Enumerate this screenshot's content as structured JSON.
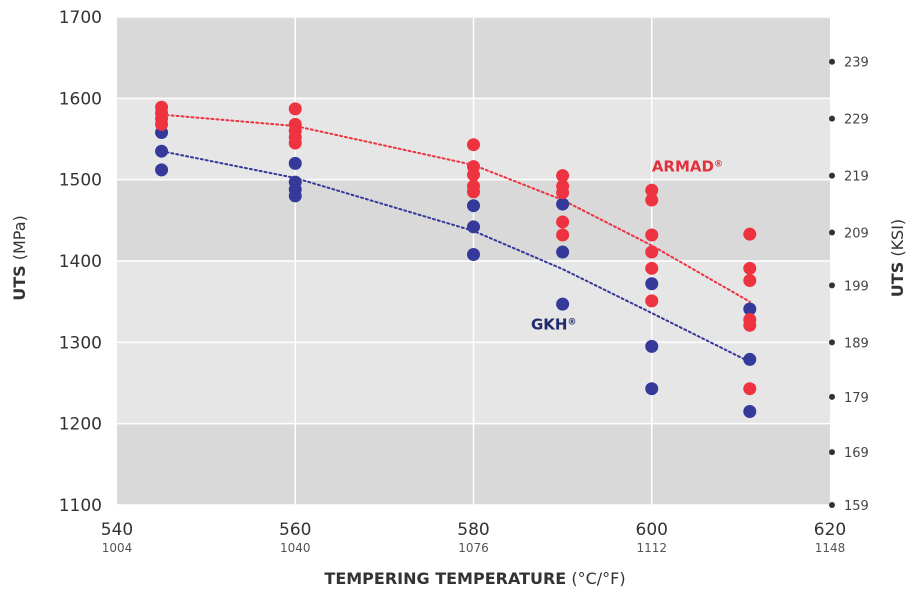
{
  "chart_data": {
    "type": "scatter",
    "xlim": [
      540,
      620
    ],
    "ylim": [
      1100,
      1700
    ],
    "x_ticks": [
      540,
      560,
      580,
      600,
      620
    ],
    "x_ticks_secondary": [
      "1004",
      "1040",
      "1076",
      "1112",
      "1148"
    ],
    "y_ticks": [
      1100,
      1200,
      1300,
      1400,
      1500,
      1600,
      1700
    ],
    "y_right_ticks": [
      {
        "label": "159",
        "value": 1100
      },
      {
        "label": "169",
        "value": 1165
      },
      {
        "label": "179",
        "value": 1233
      },
      {
        "label": "189",
        "value": 1300
      },
      {
        "label": "199",
        "value": 1370
      },
      {
        "label": "209",
        "value": 1435
      },
      {
        "label": "219",
        "value": 1505
      },
      {
        "label": "229",
        "value": 1575
      },
      {
        "label": "239",
        "value": 1645
      }
    ],
    "xlabel_bold": "TEMPERING TEMPERATURE",
    "xlabel_unit": "(°C/°F)",
    "ylabel_bold": "UTS",
    "ylabel_unit": "(MPa)",
    "y2label_bold": "UTS",
    "y2label_unit": "(KSI)",
    "bands": [
      {
        "from": 1100,
        "to": 1200,
        "color": "#d9d9d9"
      },
      {
        "from": 1200,
        "to": 1400,
        "color": "#e6e6e6"
      },
      {
        "from": 1400,
        "to": 1500,
        "color": "#d9d9d9"
      },
      {
        "from": 1500,
        "to": 1600,
        "color": "#e6e6e6"
      },
      {
        "from": 1600,
        "to": 1700,
        "color": "#d9d9d9"
      }
    ],
    "series": [
      {
        "name": "GKH",
        "name_sup": "®",
        "color": "#35399a",
        "label_color": "#1f2a6b",
        "label_pos": [
          589,
          1316
        ],
        "points": [
          [
            545,
            1558
          ],
          [
            545,
            1535
          ],
          [
            545,
            1512
          ],
          [
            560,
            1520
          ],
          [
            560,
            1497
          ],
          [
            560,
            1488
          ],
          [
            560,
            1480
          ],
          [
            580,
            1468
          ],
          [
            580,
            1442
          ],
          [
            580,
            1408
          ],
          [
            590,
            1470
          ],
          [
            590,
            1411
          ],
          [
            590,
            1347
          ],
          [
            600,
            1372
          ],
          [
            600,
            1295
          ],
          [
            600,
            1243
          ],
          [
            611,
            1341
          ],
          [
            611,
            1279
          ],
          [
            611,
            1215
          ]
        ],
        "trend": [
          [
            545,
            1535
          ],
          [
            560,
            1502
          ],
          [
            580,
            1437
          ],
          [
            590,
            1390
          ],
          [
            600,
            1336
          ],
          [
            611,
            1276
          ]
        ]
      },
      {
        "name": "ARMAD",
        "name_sup": "®",
        "color": "#ee3340",
        "label_color": "#e0313c",
        "label_pos": [
          604,
          1510
        ],
        "points": [
          [
            545,
            1589
          ],
          [
            545,
            1582
          ],
          [
            545,
            1575
          ],
          [
            545,
            1568
          ],
          [
            560,
            1587
          ],
          [
            560,
            1568
          ],
          [
            560,
            1560
          ],
          [
            560,
            1552
          ],
          [
            560,
            1545
          ],
          [
            580,
            1543
          ],
          [
            580,
            1516
          ],
          [
            580,
            1506
          ],
          [
            580,
            1492
          ],
          [
            580,
            1485
          ],
          [
            590,
            1505
          ],
          [
            590,
            1492
          ],
          [
            590,
            1484
          ],
          [
            590,
            1448
          ],
          [
            590,
            1432
          ],
          [
            600,
            1487
          ],
          [
            600,
            1475
          ],
          [
            600,
            1432
          ],
          [
            600,
            1411
          ],
          [
            600,
            1391
          ],
          [
            600,
            1351
          ],
          [
            611,
            1433
          ],
          [
            611,
            1391
          ],
          [
            611,
            1376
          ],
          [
            611,
            1328
          ],
          [
            611,
            1321
          ],
          [
            611,
            1243
          ]
        ],
        "trend": [
          [
            545,
            1580
          ],
          [
            560,
            1566
          ],
          [
            580,
            1518
          ],
          [
            590,
            1475
          ],
          [
            600,
            1419
          ],
          [
            611,
            1350
          ]
        ]
      }
    ]
  }
}
